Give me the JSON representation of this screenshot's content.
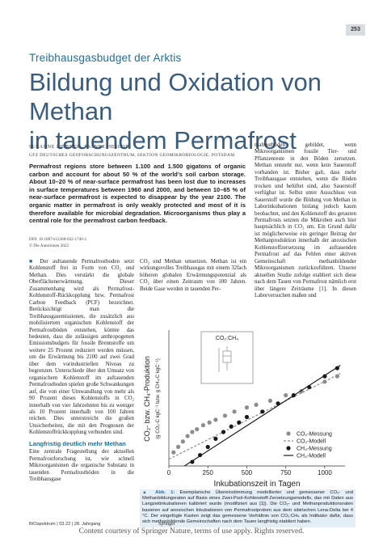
{
  "page_number": "253",
  "header": {
    "kicker": "Treibhausgasbudget der Arktis",
    "title_line1": "Bildung und Oxidation von Methan",
    "title_line2": "in tauendem Permafrost"
  },
  "article": {
    "authors": "SUSANNE LIEBNER, JOANNE HESLOP",
    "affiliation": "GFZ DEUTSCHES GEOFORSCHUNGSZENTRUM, SEKTION GEOMIKROBIOLOGIE, POTSDAM",
    "abstract": "Permafrost regions store between 1.100 and 1.500 gigatons of organic carbon and account for about 50 % of the world’s soil carbon storage. About 10–20 % of near-surface permafrost has been lost due to increases in surface temperatures between 1960 and 2000, and between 10–65 % of near-surface permafrost is expected to disappear by the year 2100. The organic matter in permafrost is only weakly protected and most of it is therefore available for microbial degradation. Microorganisms thus play a central role for the permafrost carbon feedback.",
    "doi": "DOI: 10.1007/s12268-022-1746-1",
    "copyright": "© Die Autorinnen 2022",
    "marker": "■",
    "body_col1": "Der auftauende Permafrostboden setzt Kohlenstoff frei in Form von CO₂ und Methan. Dies verstärkt die globale Oberflächenerwärmung. Dieser Zusammenhang wird als Permafrost-Kohlenstoff-Rückkopplung bzw. Permafrost Carbon Feedback (PCF) bezeichnet. Berücksichtigt man die Treibhausgasemissionen, die zusätzlich aus mobilisiertem organischen Kohlenstoff der Permafrostböden entstehen, könnte das bedeuten, dass die zulässigen anthropogenen Emissionsbudgets für fossile Brennstoffe um weitere 25 Prozent reduziert werden müssen, um die Erwärmung bis 2100 auf zwei Grad über dem vorindustriellen Niveau zu begrenzen. Unterschiede über den Umsatz von organischem Kohlenstoff im auftauenden Permafrostboden spielen große Schwankungen auf, die von einer Umwandlung von mehr als 90 Prozent dieses Kohlenstoffs in CO₂ innerhalb von vier Jahrzehnten bis zu weniger als 10 Prozent innerhalb von 100 Jahren reichen. Dies unterstreicht die großen Unsicherheiten, die mit den Prognosen der Kohlenstoffrückkopplung verbunden sind.",
    "heading": "Langfristig deutlich mehr Methan",
    "body_col1_cont": "Eine zentrale Fragestellung der aktuellen Permafrostforschung ist, wie schnell Mikroorganismen die organische Substanz in tauenden Permafrostböden in die Treibhausgase",
    "body_col2": "CO₂ und Methan umsetzen. Methan ist ein wirkungsvolles Treibhausgas mit einem 32fach höheren globalen Erwärmungspotenzial als CO₂ über einen Zeitraum von 100 Jahren. Beide Gase werden in tauenden Per-",
    "body_col3": "mafrostböden gebildet, wenn Mikroorganismen fossile Tier- und Pflanzenreste in den Böden zersetzen. Methan entsteht nur, wenn kein Sauerstoff vorhanden ist. Bisher galt, dass mehr Treibhausgase entstehen, wenn die Böden trocken und belüftet sind, also Sauerstoff verfügbar ist. Selbst unter Ausschluss von Sauerstoff wurde die Bildung von Methan in Laborinkubationen bislang jedoch kaum beobachtet, und den Kohlenstoff des getauten Permafrosts setzten die Mikroben auch hier hauptsächlich in CO₂ um. Ein Grund dafür ist möglicherweise ein geringer Beitrag der Methanproduktion innerhalb der anoxischen Kohlenstoffzersetzung im auftauenden Permafrost auf das Fehlen einer aktiven Gemeinschaft methanbildender Mikroorganismen zurückzuführen. Unserer aktuellen Studie zufolge etabliert sich diese nach dem Tauen von Permafrost nämlich erst über längere Zeiträume [1]. In diesen Laborversuchen maßen und"
  },
  "figure": {
    "inset_title": "CO₂:CH₄",
    "y_label": "CO₂- bzw. CH₄-Produktion",
    "y_label_sub": "(g CO₂-C kgC⁻¹ bzw. g CH₄-C kgC⁻¹)",
    "x_label": "Inkubationszeit in Tagen",
    "xlim": [
      0,
      1130
    ],
    "xticks": [
      0,
      250,
      500,
      750,
      1000
    ],
    "ylim": [
      0,
      100
    ],
    "series": [
      {
        "name": "CO₂-Messung",
        "color": "#8c8c8c",
        "marker": "circle",
        "x": [
          30,
          60,
          90,
          120,
          150,
          180,
          220,
          260,
          300,
          360,
          420,
          500,
          560,
          650,
          750,
          850,
          1000,
          1080
        ],
        "values": [
          10,
          14,
          18,
          22,
          25,
          27,
          30,
          32,
          34,
          37,
          40,
          43,
          45,
          48,
          52,
          55,
          62,
          66
        ]
      },
      {
        "name": "CO₂-Modell",
        "color": "#8c8c8c",
        "marker": "dashed",
        "x": [
          0,
          1100
        ],
        "values": [
          5,
          68
        ]
      },
      {
        "name": "CH₄-Messung",
        "color": "#1a1a1a",
        "marker": "circle",
        "x": [
          150,
          200,
          250,
          300,
          350,
          400,
          450,
          500,
          600,
          700,
          800,
          900,
          1000,
          1080
        ],
        "values": [
          3,
          8,
          14,
          20,
          25,
          29,
          32,
          36,
          40,
          46,
          52,
          58,
          66,
          72
        ]
      },
      {
        "name": "CH₄-Modell",
        "color": "#1a1a1a",
        "marker": "solid",
        "x": [
          100,
          1100
        ],
        "values": [
          0,
          74
        ]
      }
    ],
    "caption_label": "▲ Abb. 1:",
    "caption": "Exemplarische Übereinstimmung modellierter und gemessener CO₂- und Methanbildungsraten auf Basis eines Zwei-Pool-Kohlenstoff-Zersetzungsmodells, das mit Daten aus Langzeitinkubationen kalibriert wurde (modifiziert aus [1]). Die CO₂- und Methanproduktionsraten basieren auf anoxischen Inkubationen von Permafrostproben aus dem sibirischen Lena-Delta bei 4 °C. Der eingefügte Kasten zeigt das gemessene Verhältnis von CO₂:CH₄ als Indikator dafür, dass sich methanbildende Gemeinschaften nach dem Tauen langfristig etabliert haben."
  },
  "footer": {
    "journal": "BIOspektrum | 03.22 | 28. Jahrgang",
    "publisher": "Springer",
    "notice": "Content courtesy of Springer Nature, terms of use apply. Rights reserved."
  }
}
